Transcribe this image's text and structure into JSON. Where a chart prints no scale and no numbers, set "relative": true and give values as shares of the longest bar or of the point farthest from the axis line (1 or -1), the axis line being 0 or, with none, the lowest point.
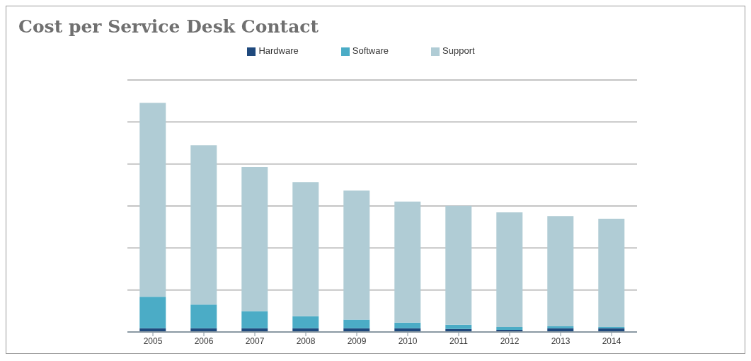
{
  "chart_data": {
    "type": "bar",
    "title": "Cost per Service Desk Contact",
    "categories": [
      "2005",
      "2006",
      "2007",
      "2008",
      "2009",
      "2010",
      "2011",
      "2012",
      "2013",
      "2014"
    ],
    "stacked": true,
    "relative": true,
    "grid": "y",
    "legend": "top",
    "series": [
      {
        "name": "Hardware",
        "color": "#1f497d",
        "values": [
          0.016,
          0.016,
          0.016,
          0.016,
          0.016,
          0.016,
          0.013,
          0.009,
          0.016,
          0.016
        ]
      },
      {
        "name": "Software",
        "color": "#4bacc6",
        "values": [
          0.138,
          0.104,
          0.075,
          0.053,
          0.038,
          0.025,
          0.019,
          0.013,
          0.009,
          0.006
        ]
      },
      {
        "name": "Support",
        "color": "#b0ccd5",
        "values": [
          0.846,
          0.695,
          0.629,
          0.585,
          0.563,
          0.528,
          0.519,
          0.5,
          0.481,
          0.472
        ]
      }
    ]
  }
}
